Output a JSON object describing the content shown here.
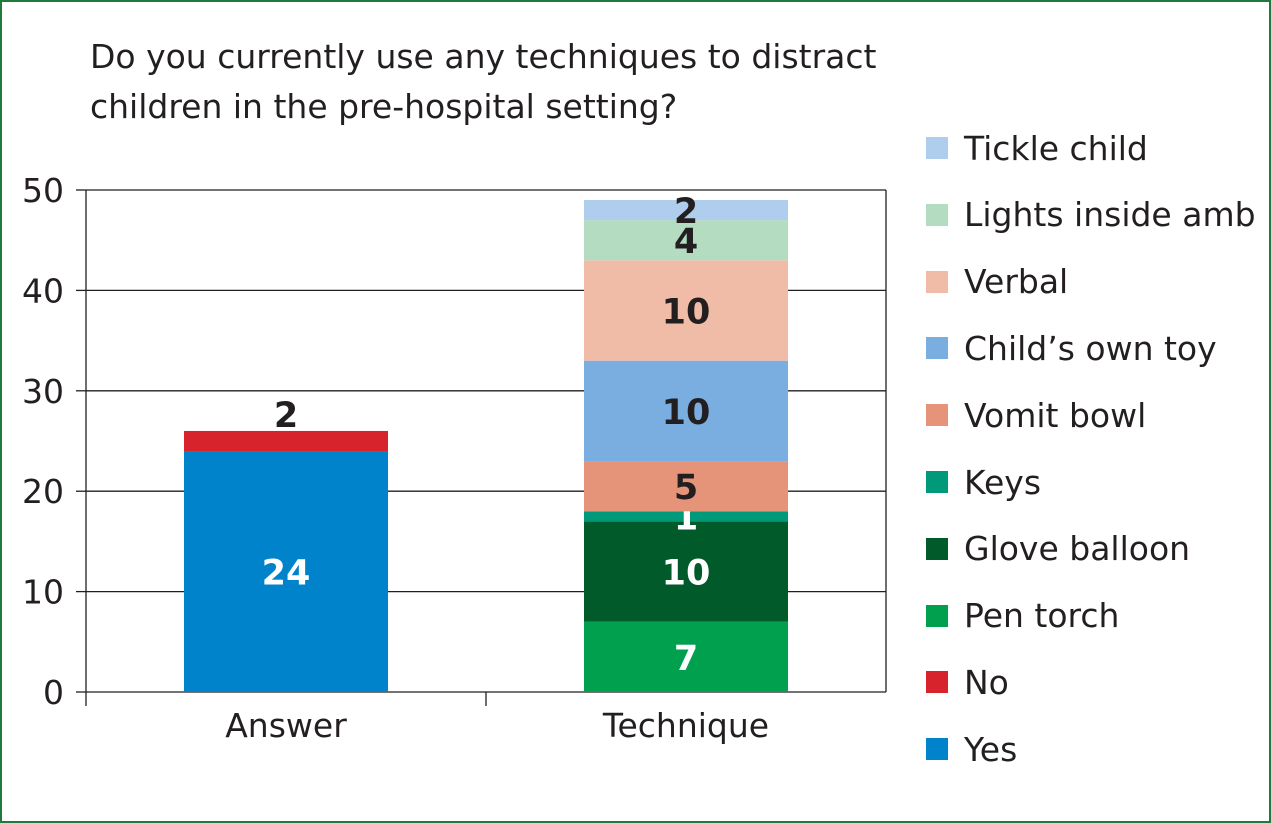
{
  "chart_data": {
    "type": "bar",
    "stacked": true,
    "title": "Do you currently use any techniques to distract\nchildren in the pre-hospital setting?",
    "categories": [
      "Answer",
      "Technique"
    ],
    "ylim": [
      0,
      50
    ],
    "yticks": [
      0,
      10,
      20,
      30,
      40,
      50
    ],
    "grid": true,
    "legend_position": "right",
    "series": [
      {
        "name": "Yes",
        "color": "#0083cb",
        "values": [
          24,
          0
        ],
        "label_color": "#ffffff"
      },
      {
        "name": "No",
        "color": "#d7242c",
        "values": [
          2,
          0
        ],
        "label_color": "#231f20",
        "label_above": true
      },
      {
        "name": "Pen torch",
        "color": "#00a04e",
        "values": [
          0,
          7
        ],
        "label_color": "#ffffff"
      },
      {
        "name": "Glove balloon",
        "color": "#005a2a",
        "values": [
          0,
          10
        ],
        "label_color": "#ffffff"
      },
      {
        "name": "Keys",
        "color": "#009a7a",
        "values": [
          0,
          1
        ],
        "label_color": "#ffffff"
      },
      {
        "name": "Vomit bowl",
        "color": "#e5947a",
        "values": [
          0,
          5
        ],
        "label_color": "#231f20"
      },
      {
        "name": "Child’s own toy",
        "color": "#7baee0",
        "values": [
          0,
          10
        ],
        "label_color": "#231f20"
      },
      {
        "name": "Verbal",
        "color": "#f0bca8",
        "values": [
          0,
          10
        ],
        "label_color": "#231f20"
      },
      {
        "name": "Lights inside amb",
        "color": "#b3dcc0",
        "values": [
          0,
          4
        ],
        "label_color": "#231f20"
      },
      {
        "name": "Tickle child",
        "color": "#afcdec",
        "values": [
          0,
          2
        ],
        "label_color": "#231f20"
      }
    ],
    "legend_order": [
      "Tickle child",
      "Lights inside amb",
      "Verbal",
      "Child’s own toy",
      "Vomit bowl",
      "Keys",
      "Glove balloon",
      "Pen torch",
      "No",
      "Yes"
    ]
  }
}
